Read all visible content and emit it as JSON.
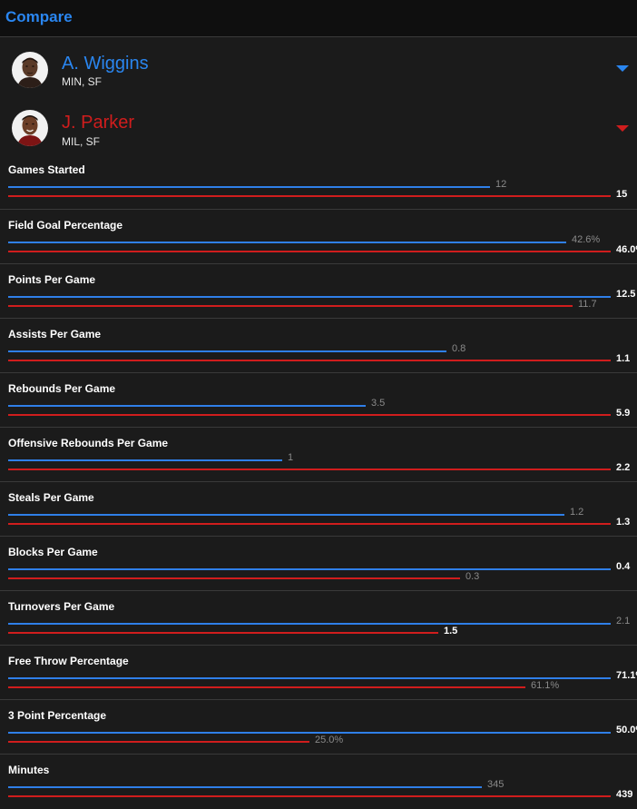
{
  "header": {
    "title": "Compare"
  },
  "players": [
    {
      "name": "A. Wiggins",
      "team": "MIN, SF",
      "color": "#2a86f0"
    },
    {
      "name": "J. Parker",
      "team": "MIL, SF",
      "color": "#d01d1d"
    }
  ],
  "stats": [
    {
      "label": "Games Started",
      "p1": "12",
      "p2": "15",
      "p1_frac": 0.8,
      "p2_frac": 1.0,
      "winner": "p2"
    },
    {
      "label": "Field Goal Percentage",
      "p1": "42.6%",
      "p2": "46.0%",
      "p1_frac": 0.926,
      "p2_frac": 1.0,
      "winner": "p2"
    },
    {
      "label": "Points Per Game",
      "p1": "12.5",
      "p2": "11.7",
      "p1_frac": 1.0,
      "p2_frac": 0.936,
      "winner": "p1"
    },
    {
      "label": "Assists Per Game",
      "p1": "0.8",
      "p2": "1.1",
      "p1_frac": 0.727,
      "p2_frac": 1.0,
      "winner": "p2"
    },
    {
      "label": "Rebounds Per Game",
      "p1": "3.5",
      "p2": "5.9",
      "p1_frac": 0.593,
      "p2_frac": 1.0,
      "winner": "p2"
    },
    {
      "label": "Offensive Rebounds Per Game",
      "p1": "1",
      "p2": "2.2",
      "p1_frac": 0.455,
      "p2_frac": 1.0,
      "winner": "p2"
    },
    {
      "label": "Steals Per Game",
      "p1": "1.2",
      "p2": "1.3",
      "p1_frac": 0.923,
      "p2_frac": 1.0,
      "winner": "p2"
    },
    {
      "label": "Blocks Per Game",
      "p1": "0.4",
      "p2": "0.3",
      "p1_frac": 1.0,
      "p2_frac": 0.75,
      "winner": "p1"
    },
    {
      "label": "Turnovers Per Game",
      "p1": "2.1",
      "p2": "1.5",
      "p1_frac": 1.0,
      "p2_frac": 0.714,
      "winner": "p2"
    },
    {
      "label": "Free Throw Percentage",
      "p1": "71.1%",
      "p2": "61.1%",
      "p1_frac": 1.0,
      "p2_frac": 0.859,
      "winner": "p1"
    },
    {
      "label": "3 Point Percentage",
      "p1": "50.0%",
      "p2": "25.0%",
      "p1_frac": 1.0,
      "p2_frac": 0.5,
      "winner": "p1"
    },
    {
      "label": "Minutes",
      "p1": "345",
      "p2": "439",
      "p1_frac": 0.786,
      "p2_frac": 1.0,
      "winner": "p2"
    }
  ]
}
